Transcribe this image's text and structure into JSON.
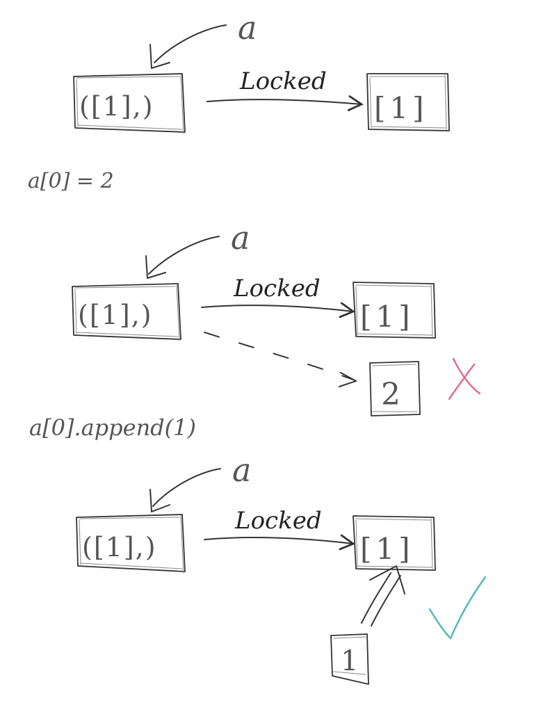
{
  "panels": [
    {
      "name_label": "a",
      "tuple_label": "([1],)",
      "edge_label": "Locked",
      "list_label": "[1]"
    },
    {
      "statement": "a[0] = 2",
      "name_label": "a",
      "tuple_label": "([1],)",
      "edge_label": "Locked",
      "list_label": "[1]",
      "new_value_label": "2",
      "result_mark_color": "#e0668a",
      "result_mark_icon": "cross-icon"
    },
    {
      "statement": "a[0].append(1)",
      "name_label": "a",
      "tuple_label": "([1],)",
      "edge_label": "Locked",
      "list_label": "[1]",
      "appended_value_label": "1",
      "result_mark_color": "#4fb8b8",
      "result_mark_icon": "check-icon"
    }
  ]
}
